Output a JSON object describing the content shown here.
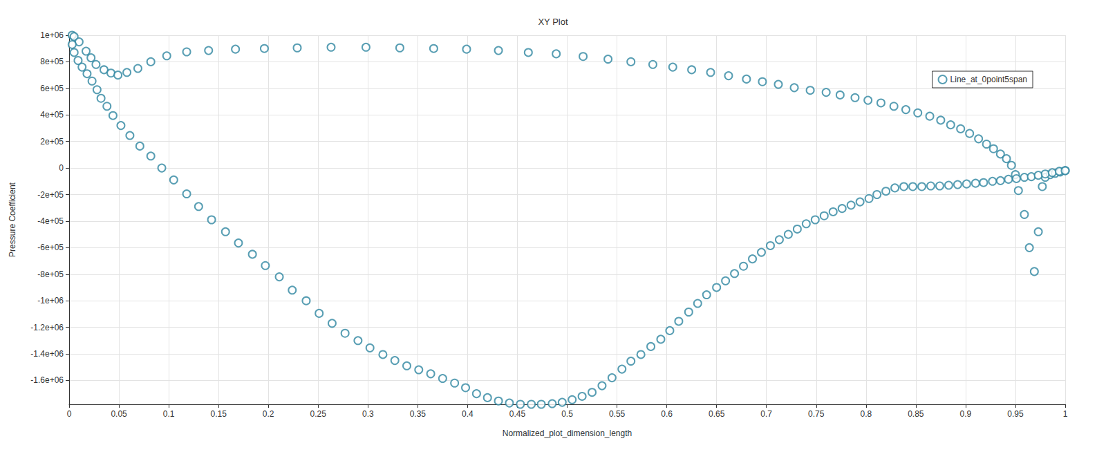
{
  "chart_data": {
    "type": "scatter",
    "title": "XY Plot",
    "x_label": "Normalized_plot_dimension_length",
    "y_label": "Pressure Coefficient",
    "xlim": [
      0,
      1
    ],
    "xticks": [
      0,
      0.05,
      0.1,
      0.15,
      0.2,
      0.25,
      0.3,
      0.35,
      0.4,
      0.45,
      0.5,
      0.55,
      0.6,
      0.65,
      0.7,
      0.75,
      0.8,
      0.85,
      0.9,
      0.95,
      1
    ],
    "ylim": [
      -1780000,
      1000000
    ],
    "yticks": [
      {
        "value": -1600000,
        "label": "-1.6e+06"
      },
      {
        "value": -1400000,
        "label": "-1.4e+06"
      },
      {
        "value": -1200000,
        "label": "-1.2e+06"
      },
      {
        "value": -1000000,
        "label": "-1e+06"
      },
      {
        "value": -800000,
        "label": "-8e+05"
      },
      {
        "value": -600000,
        "label": "-6e+05"
      },
      {
        "value": -400000,
        "label": "-4e+05"
      },
      {
        "value": -200000,
        "label": "-2e+05"
      },
      0,
      {
        "value": 200000,
        "label": "2e+05"
      },
      {
        "value": 400000,
        "label": "4e+05"
      },
      {
        "value": 600000,
        "label": "6e+05"
      },
      {
        "value": 800000,
        "label": "8e+05"
      },
      {
        "value": 1000000,
        "label": "1e+06"
      }
    ],
    "grid": true,
    "legend": "top-right",
    "series": [
      {
        "name": "Line_at_0point5span",
        "color": "#2e86a0",
        "marker": "open-circle",
        "x": [
          0.003,
          0.005,
          0.01,
          0.017,
          0.022,
          0.027,
          0.035,
          0.042,
          0.049,
          0.058,
          0.069,
          0.082,
          0.098,
          0.118,
          0.14,
          0.167,
          0.196,
          0.229,
          0.263,
          0.298,
          0.332,
          0.366,
          0.399,
          0.431,
          0.461,
          0.489,
          0.516,
          0.541,
          0.564,
          0.586,
          0.606,
          0.625,
          0.644,
          0.662,
          0.68,
          0.696,
          0.712,
          0.728,
          0.744,
          0.76,
          0.774,
          0.789,
          0.802,
          0.815,
          0.828,
          0.84,
          0.852,
          0.864,
          0.875,
          0.885,
          0.895,
          0.904,
          0.913,
          0.921,
          0.928,
          0.935,
          0.941,
          0.946,
          0.95,
          0.953,
          0.959,
          0.964,
          0.969,
          0.973,
          0.977,
          0.98,
          0.985,
          0.99,
          0.995,
          1.0,
          0.003,
          0.005,
          0.009,
          0.013,
          0.018,
          0.023,
          0.028,
          0.032,
          0.038,
          0.044,
          0.052,
          0.061,
          0.071,
          0.082,
          0.093,
          0.105,
          0.118,
          0.13,
          0.143,
          0.157,
          0.17,
          0.184,
          0.197,
          0.211,
          0.224,
          0.238,
          0.251,
          0.264,
          0.277,
          0.29,
          0.302,
          0.315,
          0.327,
          0.339,
          0.351,
          0.363,
          0.375,
          0.387,
          0.398,
          0.409,
          0.42,
          0.431,
          0.442,
          0.453,
          0.464,
          0.474,
          0.485,
          0.495,
          0.505,
          0.515,
          0.525,
          0.535,
          0.545,
          0.555,
          0.564,
          0.574,
          0.584,
          0.594,
          0.603,
          0.612,
          0.622,
          0.631,
          0.64,
          0.65,
          0.659,
          0.668,
          0.677,
          0.686,
          0.695,
          0.704,
          0.713,
          0.722,
          0.731,
          0.74,
          0.749,
          0.758,
          0.767,
          0.776,
          0.785,
          0.794,
          0.803,
          0.811,
          0.82,
          0.829,
          0.838,
          0.847,
          0.856,
          0.865,
          0.874,
          0.883,
          0.892,
          0.901,
          0.91,
          0.918,
          0.927,
          0.935,
          0.943,
          0.951,
          0.959,
          0.966,
          0.973,
          0.98,
          0.987,
          0.994,
          1.0
        ],
        "values": [
          1000000,
          990000,
          950000,
          880000,
          830000,
          780000,
          740000,
          715000,
          700000,
          720000,
          750000,
          800000,
          845000,
          875000,
          885000,
          895000,
          900000,
          905000,
          910000,
          910000,
          905000,
          900000,
          895000,
          885000,
          870000,
          860000,
          840000,
          820000,
          800000,
          780000,
          760000,
          740000,
          720000,
          695000,
          670000,
          650000,
          630000,
          605000,
          585000,
          570000,
          550000,
          530000,
          510000,
          490000,
          465000,
          440000,
          415000,
          390000,
          360000,
          325000,
          295000,
          260000,
          220000,
          180000,
          145000,
          105000,
          70000,
          20000,
          -50000,
          -170000,
          -350000,
          -600000,
          -780000,
          -480000,
          -140000,
          -70000,
          -50000,
          -40000,
          -30000,
          -20000,
          930000,
          870000,
          810000,
          760000,
          710000,
          655000,
          590000,
          525000,
          465000,
          395000,
          320000,
          245000,
          165000,
          90000,
          0,
          -90000,
          -195000,
          -290000,
          -390000,
          -480000,
          -565000,
          -650000,
          -735000,
          -820000,
          -920000,
          -1000000,
          -1095000,
          -1170000,
          -1245000,
          -1300000,
          -1355000,
          -1405000,
          -1450000,
          -1490000,
          -1520000,
          -1550000,
          -1585000,
          -1620000,
          -1655000,
          -1700000,
          -1730000,
          -1755000,
          -1770000,
          -1780000,
          -1780000,
          -1780000,
          -1775000,
          -1765000,
          -1745000,
          -1720000,
          -1690000,
          -1640000,
          -1580000,
          -1515000,
          -1455000,
          -1405000,
          -1345000,
          -1290000,
          -1225000,
          -1155000,
          -1085000,
          -1020000,
          -955000,
          -900000,
          -850000,
          -795000,
          -740000,
          -685000,
          -635000,
          -585000,
          -540000,
          -500000,
          -460000,
          -420000,
          -390000,
          -360000,
          -330000,
          -305000,
          -280000,
          -255000,
          -230000,
          -200000,
          -175000,
          -150000,
          -140000,
          -140000,
          -140000,
          -135000,
          -135000,
          -130000,
          -125000,
          -120000,
          -115000,
          -110000,
          -100000,
          -95000,
          -85000,
          -80000,
          -70000,
          -65000,
          -55000,
          -45000,
          -35000,
          -25000,
          -20000
        ]
      }
    ]
  }
}
